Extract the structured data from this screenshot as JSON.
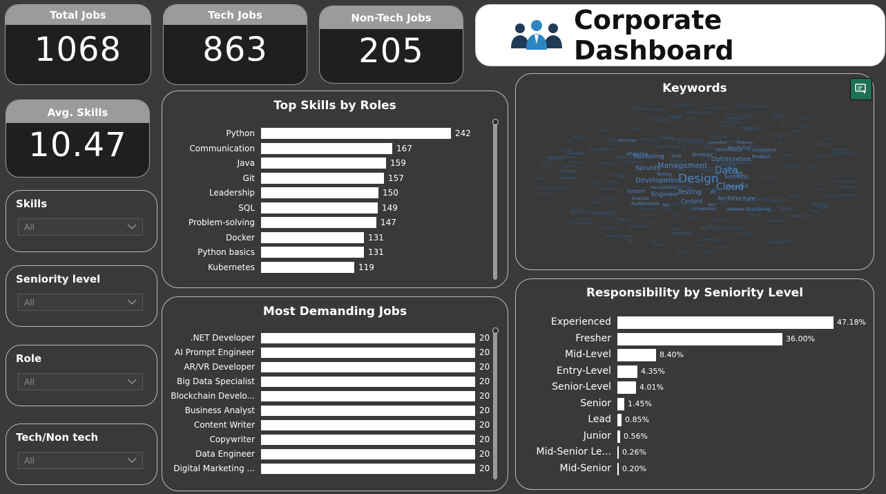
{
  "kpis": {
    "total_jobs": {
      "label": "Total Jobs",
      "value": "1068"
    },
    "tech_jobs": {
      "label": "Tech Jobs",
      "value": "863"
    },
    "non_tech_jobs": {
      "label": "Non-Tech Jobs",
      "value": "205"
    },
    "avg_skills": {
      "label": "Avg. Skills",
      "value": "10.47"
    }
  },
  "header": {
    "title": "Corporate Dashboard",
    "icon": "people-group-icon"
  },
  "slicers": [
    {
      "label": "Skills",
      "value": "All"
    },
    {
      "label": "Seniority level",
      "value": "All"
    },
    {
      "label": "Role",
      "value": "All"
    },
    {
      "label": "Tech/Non tech",
      "value": "All"
    }
  ],
  "keywords": {
    "title": "Keywords",
    "words": [
      "Design",
      "Data",
      "Cloud",
      "Management",
      "Development",
      "Testing",
      "Architecture",
      "Engineer",
      "Optimization",
      "Security",
      "Marketing",
      "Systems",
      "AI",
      "ML",
      "Analytics",
      "Automation",
      "Content",
      "Strategy",
      "Research",
      "Performance",
      "Compliance",
      "Integration",
      "Network Engineering",
      "Product",
      "Monitoring",
      "Basics",
      "Blockchain",
      "Analysis",
      "Tools",
      "System",
      "Documentation",
      "Writing",
      "Computing",
      "Modeling",
      "Seo",
      "Tos"
    ]
  },
  "top_skills": {
    "title": "Top Skills by Roles",
    "max": 242,
    "items": [
      {
        "label": "Python",
        "value": 242
      },
      {
        "label": "Communication",
        "value": 167
      },
      {
        "label": "Java",
        "value": 159
      },
      {
        "label": "Git",
        "value": 157
      },
      {
        "label": "Leadership",
        "value": 150
      },
      {
        "label": "SQL",
        "value": 149
      },
      {
        "label": "Problem-solving",
        "value": 147
      },
      {
        "label": "Docker",
        "value": 131
      },
      {
        "label": "Python basics",
        "value": 131
      },
      {
        "label": "Kubernetes",
        "value": 119
      }
    ]
  },
  "demanding_jobs": {
    "title": "Most Demanding Jobs",
    "max": 20,
    "items": [
      {
        "label": ".NET Developer",
        "value": 20
      },
      {
        "label": "AI Prompt Engineer",
        "value": 20
      },
      {
        "label": "AR/VR Developer",
        "value": 20
      },
      {
        "label": "Big Data Specialist",
        "value": 20
      },
      {
        "label": "Blockchain Develo...",
        "value": 20
      },
      {
        "label": "Business Analyst",
        "value": 20
      },
      {
        "label": "Content Writer",
        "value": 20
      },
      {
        "label": "Copywriter",
        "value": 20
      },
      {
        "label": "Data Engineer",
        "value": 20
      },
      {
        "label": "Digital Marketing ...",
        "value": 20
      }
    ]
  },
  "responsibility": {
    "title": "Responsibility by Seniority Level",
    "max": 47.18,
    "items": [
      {
        "label": "Experienced",
        "value": 47.18,
        "text": "47.18%"
      },
      {
        "label": "Fresher",
        "value": 36.0,
        "text": "36.00%"
      },
      {
        "label": "Mid-Level",
        "value": 8.4,
        "text": "8.40%"
      },
      {
        "label": "Entry-Level",
        "value": 4.35,
        "text": "4.35%"
      },
      {
        "label": "Senior-Level",
        "value": 4.01,
        "text": "4.01%"
      },
      {
        "label": "Senior",
        "value": 1.45,
        "text": "1.45%"
      },
      {
        "label": "Lead",
        "value": 0.85,
        "text": "0.85%"
      },
      {
        "label": "Junior",
        "value": 0.56,
        "text": "0.56%"
      },
      {
        "label": "Mid-Senior Le...",
        "value": 0.26,
        "text": "0.26%"
      },
      {
        "label": "Mid-Senior",
        "value": 0.2,
        "text": "0.20%"
      }
    ]
  }
}
